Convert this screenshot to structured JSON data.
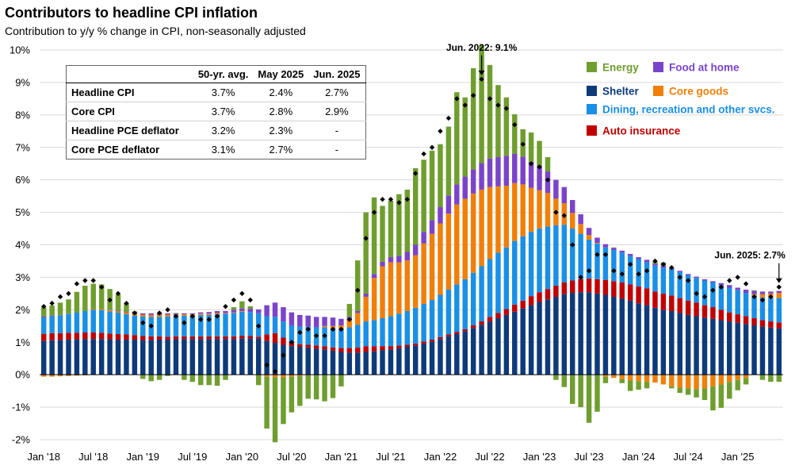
{
  "chart_data": {
    "type": "bar",
    "stacked": true,
    "title": "Contributors to headline CPI inflation",
    "subtitle": "Contribution to y/y % change in CPI, non-seasonally adjusted",
    "ylim": [
      -2,
      10
    ],
    "yticks": [
      -2,
      -1,
      0,
      1,
      2,
      3,
      4,
      5,
      6,
      7,
      8,
      9,
      10
    ],
    "ytick_labels": [
      "-2%",
      "-1%",
      "0%",
      "1%",
      "2%",
      "3%",
      "4%",
      "5%",
      "6%",
      "7%",
      "8%",
      "9%",
      "10%"
    ],
    "xtick_labels": [
      "Jan '18",
      "Jul '18",
      "Jan '19",
      "Jul '19",
      "Jan '20",
      "Jul '20",
      "Jan '21",
      "Jul '21",
      "Jan '22",
      "Jul '22",
      "Jan '23",
      "Jul '23",
      "Jan '24",
      "Jul '24",
      "Jan '25"
    ],
    "xtick_months": [
      0,
      6,
      12,
      18,
      24,
      30,
      36,
      42,
      48,
      54,
      60,
      66,
      72,
      78,
      84
    ],
    "start": "Jan 2018",
    "months": 90,
    "series": [
      {
        "name": "Shelter",
        "color": "#0e3a7a",
        "values": [
          1.04,
          1.06,
          1.07,
          1.08,
          1.09,
          1.1,
          1.1,
          1.1,
          1.09,
          1.08,
          1.08,
          1.08,
          1.07,
          1.07,
          1.08,
          1.08,
          1.09,
          1.1,
          1.1,
          1.1,
          1.1,
          1.1,
          1.1,
          1.1,
          1.12,
          1.12,
          1.11,
          1.04,
          0.98,
          0.92,
          0.88,
          0.86,
          0.84,
          0.8,
          0.78,
          0.74,
          0.7,
          0.68,
          0.68,
          0.7,
          0.72,
          0.76,
          0.78,
          0.82,
          0.86,
          0.9,
          0.96,
          1.02,
          1.1,
          1.18,
          1.26,
          1.34,
          1.44,
          1.54,
          1.64,
          1.74,
          1.84,
          1.94,
          2.04,
          2.14,
          2.24,
          2.32,
          2.4,
          2.48,
          2.52,
          2.54,
          2.54,
          2.5,
          2.46,
          2.4,
          2.34,
          2.28,
          2.2,
          2.14,
          2.06,
          2.0,
          1.96,
          1.9,
          1.84,
          1.8,
          1.76,
          1.72,
          1.68,
          1.64,
          1.6,
          1.56,
          1.52,
          1.48,
          1.45,
          1.43
        ]
      },
      {
        "name": "Auto insurance",
        "color": "#c00000",
        "values": [
          0.22,
          0.22,
          0.21,
          0.21,
          0.2,
          0.2,
          0.2,
          0.19,
          0.18,
          0.17,
          0.16,
          0.14,
          0.12,
          0.11,
          0.1,
          0.09,
          0.09,
          0.08,
          0.08,
          0.08,
          0.08,
          0.08,
          0.08,
          0.08,
          0.08,
          0.07,
          0.06,
          0.2,
          0.3,
          0.22,
          0.12,
          0.08,
          0.08,
          0.1,
          0.1,
          0.1,
          0.12,
          0.14,
          0.16,
          0.18,
          0.16,
          0.12,
          0.1,
          0.08,
          0.06,
          0.06,
          0.06,
          0.06,
          0.06,
          0.06,
          0.06,
          0.06,
          0.08,
          0.1,
          0.14,
          0.16,
          0.18,
          0.22,
          0.24,
          0.28,
          0.3,
          0.32,
          0.34,
          0.36,
          0.38,
          0.4,
          0.42,
          0.44,
          0.46,
          0.48,
          0.5,
          0.5,
          0.52,
          0.52,
          0.5,
          0.5,
          0.48,
          0.46,
          0.44,
          0.42,
          0.38,
          0.36,
          0.32,
          0.28,
          0.26,
          0.24,
          0.22,
          0.2,
          0.19,
          0.18
        ]
      },
      {
        "name": "Dining, recreation and other svcs.",
        "color": "#1a8fe6",
        "values": [
          0.5,
          0.52,
          0.55,
          0.58,
          0.62,
          0.66,
          0.7,
          0.7,
          0.68,
          0.66,
          0.62,
          0.6,
          0.6,
          0.6,
          0.6,
          0.62,
          0.62,
          0.64,
          0.64,
          0.66,
          0.66,
          0.68,
          0.7,
          0.72,
          0.74,
          0.74,
          0.72,
          0.56,
          0.5,
          0.5,
          0.52,
          0.54,
          0.56,
          0.56,
          0.58,
          0.6,
          0.6,
          0.64,
          0.7,
          0.76,
          0.8,
          0.86,
          0.92,
          0.98,
          1.04,
          1.1,
          1.16,
          1.22,
          1.3,
          1.38,
          1.46,
          1.54,
          1.62,
          1.7,
          1.78,
          1.86,
          1.9,
          1.96,
          1.98,
          1.98,
          1.96,
          1.92,
          1.86,
          1.78,
          1.6,
          1.4,
          1.2,
          1.1,
          1.0,
          0.96,
          0.92,
          0.88,
          0.84,
          0.8,
          0.8,
          0.8,
          0.8,
          0.8,
          0.78,
          0.76,
          0.76,
          0.76,
          0.76,
          0.76,
          0.74,
          0.72,
          0.7,
          0.7,
          0.72,
          0.75
        ]
      },
      {
        "name": "Core goods",
        "color": "#f07f09",
        "values": [
          -0.06,
          -0.06,
          -0.05,
          -0.04,
          -0.03,
          -0.02,
          0.02,
          0.03,
          0.04,
          0.04,
          0.05,
          0.06,
          0.06,
          0.06,
          0.06,
          0.06,
          0.04,
          0.04,
          0.04,
          0.04,
          0.04,
          0.04,
          0.02,
          0.02,
          0.02,
          0.0,
          -0.02,
          -0.06,
          -0.08,
          -0.08,
          -0.06,
          -0.04,
          -0.02,
          0.0,
          0.04,
          0.06,
          0.1,
          0.22,
          0.36,
          0.76,
          1.3,
          1.6,
          1.66,
          1.58,
          1.56,
          1.62,
          1.86,
          2.04,
          2.2,
          2.34,
          2.46,
          2.48,
          2.44,
          2.36,
          2.22,
          2.04,
          1.9,
          1.78,
          1.6,
          1.36,
          1.18,
          1.04,
          0.82,
          0.66,
          0.48,
          0.3,
          0.14,
          0.02,
          -0.06,
          -0.1,
          -0.14,
          -0.18,
          -0.2,
          -0.22,
          -0.24,
          -0.3,
          -0.36,
          -0.4,
          -0.42,
          -0.44,
          -0.42,
          -0.36,
          -0.3,
          -0.22,
          -0.16,
          -0.1,
          0.04,
          0.1,
          0.14,
          0.16
        ]
      },
      {
        "name": "Food at home",
        "color": "#7b44c8",
        "values": [
          0.03,
          0.02,
          0.01,
          0.01,
          0.0,
          0.0,
          0.0,
          0.0,
          0.01,
          0.02,
          0.02,
          0.03,
          0.04,
          0.05,
          0.05,
          0.04,
          0.04,
          0.03,
          0.03,
          0.04,
          0.05,
          0.06,
          0.06,
          0.08,
          0.08,
          0.1,
          0.12,
          0.34,
          0.44,
          0.44,
          0.4,
          0.36,
          0.34,
          0.32,
          0.28,
          0.26,
          0.2,
          0.1,
          0.06,
          0.1,
          0.12,
          0.14,
          0.16,
          0.2,
          0.26,
          0.32,
          0.36,
          0.42,
          0.5,
          0.56,
          0.62,
          0.68,
          0.74,
          0.82,
          0.88,
          0.9,
          0.92,
          0.9,
          0.86,
          0.8,
          0.76,
          0.66,
          0.58,
          0.5,
          0.4,
          0.3,
          0.22,
          0.16,
          0.1,
          0.06,
          0.06,
          0.06,
          0.06,
          0.08,
          0.06,
          0.06,
          0.04,
          0.04,
          0.04,
          0.04,
          0.04,
          0.04,
          0.06,
          0.08,
          0.08,
          0.1,
          0.1,
          0.08,
          0.06,
          0.06
        ]
      },
      {
        "name": "Energy",
        "color": "#6f9e2f",
        "values": [
          0.28,
          0.31,
          0.38,
          0.44,
          0.64,
          0.78,
          0.78,
          0.76,
          0.64,
          0.5,
          0.27,
          0.04,
          -0.13,
          -0.2,
          -0.16,
          -0.04,
          0.02,
          -0.16,
          -0.22,
          -0.32,
          -0.32,
          -0.34,
          -0.16,
          0.08,
          0.22,
          0.08,
          -0.3,
          -1.6,
          -2.0,
          -1.44,
          -1.1,
          -0.92,
          -0.72,
          -0.76,
          -0.82,
          -0.72,
          -0.36,
          0.4,
          1.56,
          2.5,
          2.36,
          1.72,
          1.74,
          1.9,
          1.92,
          2.36,
          2.22,
          2.14,
          1.94,
          2.12,
          2.84,
          2.44,
          3.12,
          3.62,
          2.88,
          2.22,
          1.8,
          1.22,
          0.84,
          0.9,
          0.76,
          0.44,
          -0.16,
          -0.38,
          -0.9,
          -1.0,
          -1.48,
          -1.14,
          -0.2,
          0.02,
          -0.12,
          -0.32,
          -0.26,
          -0.2,
          0.06,
          0.1,
          -0.06,
          -0.16,
          -0.2,
          -0.26,
          -0.36,
          -0.74,
          -0.72,
          -0.52,
          -0.32,
          -0.2,
          0.02,
          -0.16,
          -0.22,
          -0.22
        ]
      }
    ],
    "headline": [
      2.1,
      2.2,
      2.4,
      2.5,
      2.8,
      2.9,
      2.9,
      2.7,
      2.3,
      2.5,
      2.2,
      1.9,
      1.6,
      1.5,
      1.9,
      2.0,
      1.8,
      1.6,
      1.8,
      1.7,
      1.7,
      1.8,
      2.1,
      2.3,
      2.5,
      2.3,
      1.5,
      0.3,
      0.1,
      0.6,
      1.0,
      1.3,
      1.4,
      1.2,
      1.2,
      1.4,
      1.4,
      1.7,
      2.6,
      4.2,
      5.0,
      5.4,
      5.4,
      5.3,
      5.4,
      6.2,
      6.8,
      7.0,
      7.5,
      7.9,
      8.5,
      8.3,
      8.6,
      9.1,
      8.5,
      8.3,
      8.2,
      7.7,
      7.1,
      6.5,
      6.4,
      6.0,
      5.0,
      4.9,
      4.0,
      3.0,
      3.2,
      3.7,
      3.7,
      3.2,
      3.1,
      3.4,
      3.1,
      3.2,
      3.5,
      3.4,
      3.3,
      3.0,
      2.9,
      2.5,
      2.4,
      2.6,
      2.7,
      2.9,
      3.0,
      2.8,
      2.4,
      2.3,
      2.4,
      2.7
    ],
    "legend": [
      {
        "name": "Energy",
        "color": "#6f9e2f"
      },
      {
        "name": "Food at home",
        "color": "#7b44c8"
      },
      {
        "name": "Shelter",
        "color": "#0e3a7a"
      },
      {
        "name": "Core goods",
        "color": "#f07f09"
      },
      {
        "name": "Dining,  recreation and other svcs.",
        "color": "#1a8fe6"
      },
      {
        "name": "Auto insurance",
        "color": "#c00000"
      }
    ],
    "annotations": [
      {
        "text": "Jun. 2022: 9.1%",
        "month": 53,
        "value": 9.1
      },
      {
        "text": "Jun. 2025: 2.7%",
        "month": 89,
        "value": 2.7
      }
    ]
  },
  "table": {
    "headers": [
      "",
      "50-yr. avg.",
      "May 2025",
      "Jun. 2025"
    ],
    "rows": [
      {
        "label": "Headline CPI",
        "avg": "3.7%",
        "may": "2.4%",
        "jun": "2.7%"
      },
      {
        "label": "Core CPI",
        "avg": "3.7%",
        "may": "2.8%",
        "jun": "2.9%"
      },
      {
        "label": "Headline PCE deflator",
        "avg": "3.2%",
        "may": "2.3%",
        "jun": "-"
      },
      {
        "label": "Core PCE deflator",
        "avg": "3.1%",
        "may": "2.7%",
        "jun": "-"
      }
    ]
  }
}
